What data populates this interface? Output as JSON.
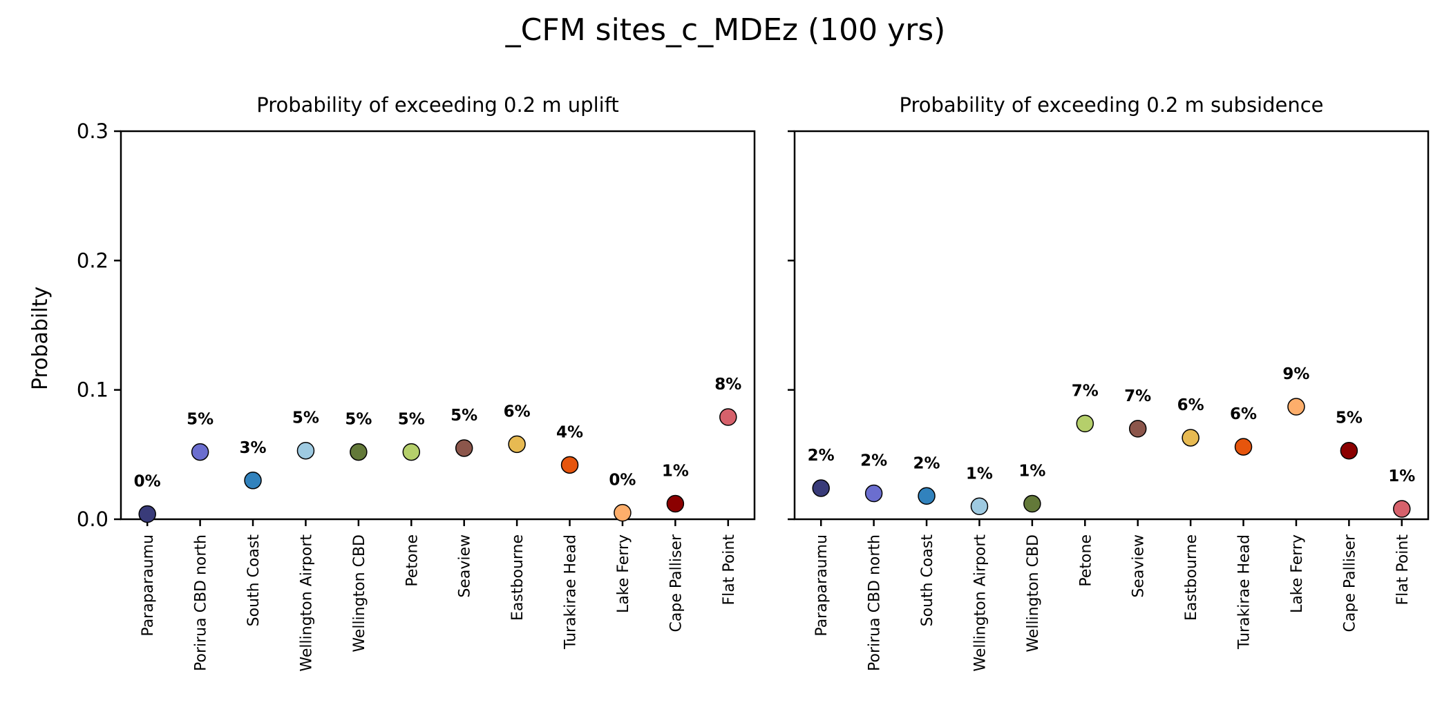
{
  "chart_data": {
    "title": "_CFM sites_c_MDEz (100 yrs)",
    "ylabel": "Probabilty",
    "ylim": [
      0,
      0.3
    ],
    "yticks": [
      "0.0",
      "0.1",
      "0.2",
      "0.3"
    ],
    "grid": false,
    "categories": [
      "Paraparaumu",
      "Porirua CBD north",
      "South Coast",
      "Wellington Airport",
      "Wellington CBD",
      "Petone",
      "Seaview",
      "Eastbourne",
      "Turakirae Head",
      "Lake Ferry",
      "Cape Palliser",
      "Flat Point"
    ],
    "colors": [
      "#393b79",
      "#6b6ecf",
      "#3182bd",
      "#9ecae1",
      "#637939",
      "#b5cf6b",
      "#8c564b",
      "#e7ba52",
      "#e6550d",
      "#fdae6b",
      "#8b0000",
      "#d6616b"
    ],
    "panels": [
      {
        "type": "scatter",
        "title": "Probability of exceeding 0.2 m uplift",
        "values": [
          0.004,
          0.052,
          0.03,
          0.053,
          0.052,
          0.052,
          0.055,
          0.058,
          0.042,
          0.005,
          0.012,
          0.079
        ],
        "labels": [
          "0%",
          "5%",
          "3%",
          "5%",
          "5%",
          "5%",
          "5%",
          "6%",
          "4%",
          "0%",
          "1%",
          "8%"
        ]
      },
      {
        "type": "scatter",
        "title": "Probability of exceeding 0.2 m subsidence",
        "values": [
          0.024,
          0.02,
          0.018,
          0.01,
          0.012,
          0.074,
          0.07,
          0.063,
          0.056,
          0.087,
          0.053,
          0.008
        ],
        "labels": [
          "2%",
          "2%",
          "2%",
          "1%",
          "1%",
          "7%",
          "7%",
          "6%",
          "6%",
          "9%",
          "5%",
          "1%"
        ]
      }
    ]
  }
}
